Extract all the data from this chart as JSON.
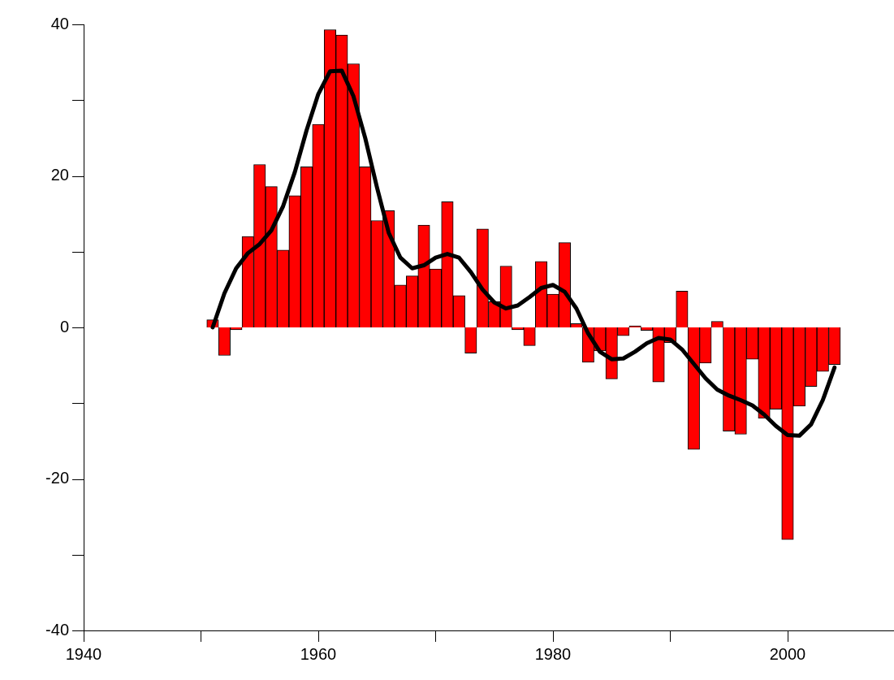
{
  "chart_data": {
    "type": "bar",
    "x": [
      1951,
      1952,
      1953,
      1954,
      1955,
      1956,
      1957,
      1958,
      1959,
      1960,
      1961,
      1962,
      1963,
      1964,
      1965,
      1966,
      1967,
      1968,
      1969,
      1970,
      1971,
      1972,
      1973,
      1974,
      1975,
      1976,
      1977,
      1978,
      1979,
      1980,
      1981,
      1982,
      1983,
      1984,
      1985,
      1986,
      1987,
      1988,
      1989,
      1990,
      1991,
      1992,
      1993,
      1994,
      1995,
      1996,
      1997,
      1998,
      1999,
      2000,
      2001,
      2002,
      2003,
      2004
    ],
    "series": [
      {
        "color": "#ff0000",
        "values": [
          1.0,
          -3.7,
          -0.3,
          12.0,
          21.5,
          18.6,
          10.2,
          17.4,
          21.2,
          26.8,
          39.3,
          38.6,
          34.8,
          21.2,
          14.1,
          15.4,
          5.6,
          6.8,
          13.5,
          7.7,
          16.6,
          4.2,
          -3.4,
          13.0,
          3.4,
          8.1,
          -0.3,
          -2.4,
          8.7,
          4.4,
          11.2,
          0.5,
          -4.6,
          -3.1,
          -6.8,
          -1.1,
          0.2,
          -0.4,
          -7.2,
          -2.0,
          4.8,
          -16.1,
          -4.7,
          0.8,
          -13.7,
          -14.1,
          -4.2,
          -12.0,
          -10.8,
          -28.0,
          -10.4,
          -7.8,
          -5.8,
          -4.9
        ]
      },
      {
        "type": "line",
        "color": "#000000",
        "values": [
          0,
          4.5,
          7.8,
          9.8,
          11.0,
          12.8,
          16,
          20.5,
          26,
          30.8,
          33.8,
          33.9,
          30.5,
          25,
          18.5,
          12.5,
          9.2,
          7.8,
          8.2,
          9.2,
          9.7,
          9.2,
          7.3,
          5.0,
          3.3,
          2.5,
          2.9,
          4.0,
          5.2,
          5.6,
          4.7,
          2.5,
          -0.8,
          -3.2,
          -4.2,
          -4.1,
          -3.2,
          -2.1,
          -1.4,
          -1.6,
          -2.9,
          -4.8,
          -6.7,
          -8.2,
          -9.0,
          -9.6,
          -10.3,
          -11.5,
          -13.0,
          -14.2,
          -14.3,
          -12.8,
          -9.6,
          -5.3
        ]
      }
    ],
    "xlim": [
      1940,
      2009
    ],
    "xticks": [
      1940,
      {
        "value": 1950,
        "label": null
      },
      1960,
      {
        "value": 1970,
        "label": null
      },
      1980,
      {
        "value": 1990,
        "label": null
      },
      2000
    ],
    "ylim": [
      -40,
      40
    ],
    "yticks": [
      -40,
      {
        "value": -30,
        "label": null
      },
      -20,
      {
        "value": -10,
        "label": null
      },
      0,
      {
        "value": 10,
        "label": null
      },
      20,
      {
        "value": 30,
        "label": null
      },
      40
    ],
    "grid": false,
    "legend": false,
    "marker": "none"
  }
}
